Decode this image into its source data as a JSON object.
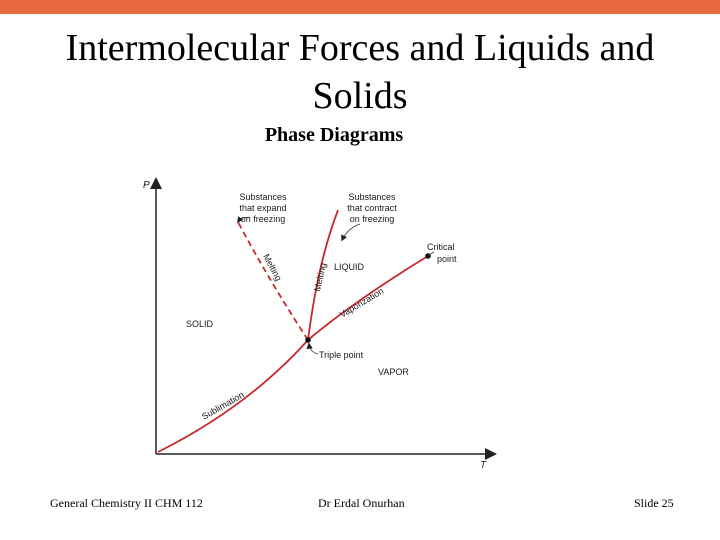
{
  "slide": {
    "accent_color": "#e8683f",
    "title": "Intermolecular Forces and Liquids and Solids",
    "subtitle": "Phase Diagrams"
  },
  "diagram": {
    "axis_p": "P",
    "axis_t": "T",
    "region_solid": "SOLID",
    "region_liquid": "LIQUID",
    "region_vapor": "VAPOR",
    "curve_melting_dashed": "Melting",
    "curve_melting_solid": "Melting",
    "curve_vaporization": "Vaporization",
    "curve_sublimation": "Sublimation",
    "triple_point": "Triple point",
    "critical_point_line1": "Critical",
    "critical_point_line2": "point",
    "note_expand_line1": "Substances",
    "note_expand_line2": "that expand",
    "note_expand_line3": "on freezing",
    "note_contract_line1": "Substances",
    "note_contract_line2": "that contract",
    "note_contract_line3": "on freezing",
    "curve_color": "#c8282d"
  },
  "footer": {
    "course": "General Chemistry II CHM 112",
    "author": "Dr Erdal Onurhan",
    "slide_number": "Slide  25"
  }
}
